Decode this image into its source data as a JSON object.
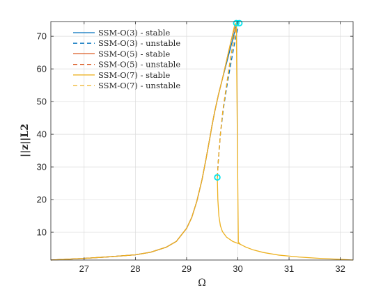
{
  "chart_data": {
    "type": "line",
    "xlabel": "Ω",
    "ylabel": "||z||L2",
    "xlim": [
      26.35,
      32.25
    ],
    "ylim": [
      1.5,
      74.5
    ],
    "xticks": [
      27,
      28,
      29,
      30,
      31,
      32
    ],
    "yticks": [
      10,
      20,
      30,
      40,
      50,
      60,
      70
    ],
    "grid": true,
    "legend_position": "top-left",
    "series": [
      {
        "name": "SSM-O(3) - stable",
        "color": "#0072BD",
        "dash": "solid",
        "x": [
          26.35,
          27.0,
          27.5,
          28.0,
          28.3,
          28.6,
          28.8,
          29.0,
          29.1,
          29.2,
          29.3,
          29.38,
          29.45,
          29.5,
          29.55,
          29.62,
          29.7,
          29.8,
          29.9,
          29.98
        ],
        "y": [
          1.5,
          2.0,
          2.5,
          3.1,
          3.9,
          5.4,
          7.2,
          11.2,
          14.5,
          19.5,
          26.0,
          32.5,
          38.5,
          43.0,
          47.0,
          52.0,
          57.0,
          63.0,
          69.0,
          74.0
        ]
      },
      {
        "name": "SSM-O(3) - unstable",
        "color": "#0072BD",
        "dash": "dashed",
        "x": [
          29.6,
          29.62,
          29.66,
          29.72,
          29.8,
          29.88,
          29.95,
          30.02
        ],
        "y": [
          26.8,
          32.0,
          40.0,
          48.0,
          56.0,
          63.0,
          69.0,
          74.0
        ]
      },
      {
        "name": "SSM-O(5) - stable",
        "color": "#D95319",
        "dash": "solid",
        "x": [
          26.35,
          27.0,
          27.5,
          28.0,
          28.3,
          28.6,
          28.8,
          29.0,
          29.1,
          29.2,
          29.3,
          29.38,
          29.45,
          29.5,
          29.55,
          29.62,
          29.7,
          29.78,
          29.86,
          29.94
        ],
        "y": [
          1.5,
          2.0,
          2.5,
          3.1,
          3.9,
          5.4,
          7.2,
          11.2,
          14.5,
          19.5,
          26.0,
          32.5,
          38.5,
          43.0,
          47.0,
          52.0,
          57.0,
          62.5,
          68.0,
          73.0
        ]
      },
      {
        "name": "SSM-O(5) - unstable",
        "color": "#D95319",
        "dash": "dashed",
        "x": [
          29.6,
          29.62,
          29.66,
          29.71,
          29.78,
          29.85,
          29.92,
          29.97
        ],
        "y": [
          26.8,
          32.0,
          40.0,
          47.5,
          55.0,
          62.5,
          69.0,
          73.0
        ]
      },
      {
        "name": "SSM-O(7) - stable",
        "color": "#EDB120",
        "dash": "solid",
        "x": [
          26.35,
          27.0,
          27.5,
          28.0,
          28.3,
          28.6,
          28.8,
          29.0,
          29.1,
          29.2,
          29.3,
          29.38,
          29.45,
          29.5,
          29.55,
          29.62,
          29.7,
          29.78,
          29.86,
          29.94,
          29.97,
          30.01,
          30.05,
          30.15,
          30.3,
          30.5,
          30.8,
          31.2,
          31.6,
          32.0,
          32.25
        ],
        "y": [
          1.5,
          2.0,
          2.5,
          3.1,
          3.9,
          5.4,
          7.2,
          11.2,
          14.5,
          19.5,
          26.0,
          32.5,
          38.5,
          43.0,
          47.0,
          52.0,
          57.0,
          62.5,
          68.0,
          73.5,
          74.0,
          7.0,
          6.3,
          5.5,
          4.6,
          3.8,
          3.0,
          2.4,
          2.0,
          1.7,
          1.5
        ]
      },
      {
        "name": "SSM-O(7) - unstable",
        "color": "#EDB120",
        "dash": "dashed",
        "x": [
          29.6,
          29.62,
          29.66,
          29.71,
          29.78,
          29.85,
          29.92,
          29.97
        ],
        "y": [
          26.8,
          32.0,
          40.0,
          47.5,
          55.0,
          62.5,
          69.0,
          74.0
        ]
      },
      {
        "name": "",
        "color": "#EDB120",
        "dash": "solid",
        "x": [
          29.6,
          29.61,
          29.63,
          29.66,
          29.7,
          29.78,
          29.9,
          30.05
        ],
        "y": [
          26.8,
          20.0,
          15.0,
          12.0,
          10.2,
          8.5,
          7.2,
          6.3
        ]
      }
    ],
    "markers": {
      "color": "#00E5EE",
      "points": [
        {
          "x": 29.6,
          "y": 26.8
        },
        {
          "x": 29.97,
          "y": 74.0
        },
        {
          "x": 30.03,
          "y": 74.0
        }
      ]
    }
  }
}
